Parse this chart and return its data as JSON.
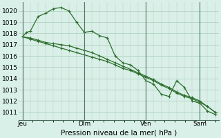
{
  "background_color": "#d8f0e8",
  "grid_minor_color": "#c0ddd0",
  "grid_major_color": "#aaccbb",
  "line_color": "#2d6e2d",
  "ylabel_min": 1011,
  "ylabel_max": 1020,
  "yticks": [
    1011,
    1012,
    1013,
    1014,
    1015,
    1016,
    1017,
    1018,
    1019,
    1020
  ],
  "xlabel": "Pression niveau de la mer( hPa )",
  "xlabel_fontsize": 7.5,
  "tick_fontsize": 6.5,
  "xtick_labels": [
    "Jeu",
    "Dim",
    "Ven",
    "Sam"
  ],
  "xtick_positions": [
    0,
    16,
    32,
    46
  ],
  "vline_positions": [
    0,
    16,
    32,
    46
  ],
  "line1_x": [
    0,
    1,
    2,
    4,
    6,
    8,
    10,
    12,
    14,
    16,
    18,
    20,
    22,
    24,
    26,
    28,
    30,
    32,
    34,
    36,
    38,
    40,
    42,
    44,
    46,
    48,
    50
  ],
  "line1_y": [
    1017.7,
    1018.1,
    1018.2,
    1019.5,
    1019.8,
    1020.2,
    1020.3,
    1020.0,
    1019.0,
    1018.1,
    1018.2,
    1017.8,
    1017.6,
    1016.0,
    1015.4,
    1015.2,
    1014.7,
    1013.8,
    1013.5,
    1012.6,
    1012.4,
    1013.8,
    1013.2,
    1012.0,
    1011.8,
    1011.1,
    1010.8
  ],
  "line2_x": [
    0,
    2,
    4,
    6,
    8,
    10,
    12,
    14,
    16,
    18,
    20,
    22,
    24,
    26,
    28,
    30,
    32,
    34,
    36,
    38,
    40,
    42,
    44,
    46,
    48,
    50
  ],
  "line2_y": [
    1017.7,
    1017.6,
    1017.4,
    1017.2,
    1017.1,
    1017.0,
    1016.9,
    1016.7,
    1016.5,
    1016.3,
    1016.0,
    1015.7,
    1015.4,
    1015.1,
    1014.8,
    1014.5,
    1014.2,
    1013.9,
    1013.5,
    1013.2,
    1012.8,
    1012.5,
    1012.3,
    1012.0,
    1011.5,
    1011.0
  ],
  "line3_x": [
    0,
    2,
    4,
    6,
    8,
    10,
    12,
    14,
    16,
    18,
    20,
    22,
    24,
    26,
    28,
    30,
    32,
    34,
    36,
    38,
    40,
    42,
    44,
    46,
    48,
    50
  ],
  "line3_y": [
    1017.7,
    1017.5,
    1017.3,
    1017.1,
    1016.9,
    1016.7,
    1016.5,
    1016.3,
    1016.1,
    1015.9,
    1015.7,
    1015.5,
    1015.2,
    1014.9,
    1014.7,
    1014.4,
    1014.1,
    1013.8,
    1013.4,
    1013.1,
    1012.7,
    1012.4,
    1012.2,
    1011.9,
    1011.5,
    1011.0
  ],
  "xlim": [
    -1,
    51
  ],
  "ylim": [
    1010.3,
    1020.8
  ]
}
